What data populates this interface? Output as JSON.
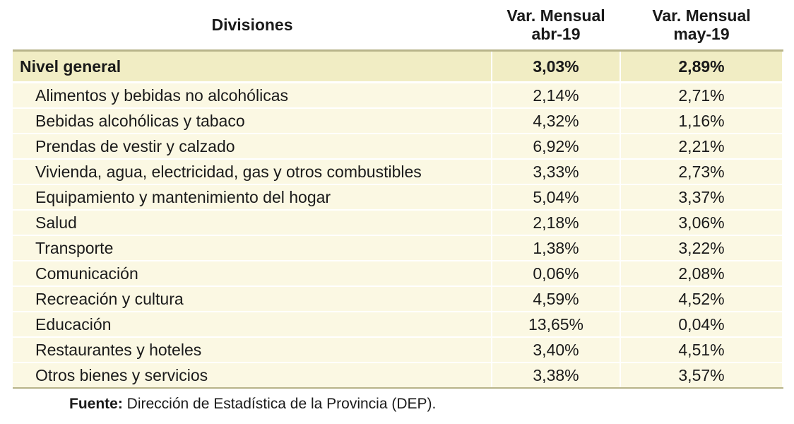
{
  "chart_data": {
    "type": "table",
    "columns": {
      "divisions": "Divisiones",
      "apr": {
        "line1": "Var. Mensual",
        "line2": "abr-19"
      },
      "may": {
        "line1": "Var. Mensual",
        "line2": "may-19"
      }
    },
    "general": {
      "label": "Nivel general",
      "apr": "3,03%",
      "may": "2,89%"
    },
    "rows": [
      {
        "label": "Alimentos y bebidas no alcohólicas",
        "apr": "2,14%",
        "may": "2,71%"
      },
      {
        "label": "Bebidas alcohólicas y tabaco",
        "apr": "4,32%",
        "may": "1,16%"
      },
      {
        "label": "Prendas de vestir y calzado",
        "apr": "6,92%",
        "may": "2,21%"
      },
      {
        "label": "Vivienda, agua, electricidad, gas y otros combustibles",
        "apr": "3,33%",
        "may": "2,73%"
      },
      {
        "label": "Equipamiento y mantenimiento del hogar",
        "apr": "5,04%",
        "may": "3,37%"
      },
      {
        "label": "Salud",
        "apr": "2,18%",
        "may": "3,06%"
      },
      {
        "label": "Transporte",
        "apr": "1,38%",
        "may": "3,22%"
      },
      {
        "label": "Comunicación",
        "apr": "0,06%",
        "may": "2,08%"
      },
      {
        "label": "Recreación y cultura",
        "apr": "4,59%",
        "may": "4,52%"
      },
      {
        "label": "Educación",
        "apr": "13,65%",
        "may": "0,04%"
      },
      {
        "label": "Restaurantes y hoteles",
        "apr": "3,40%",
        "may": "4,51%"
      },
      {
        "label": "Otros bienes y servicios",
        "apr": "3,38%",
        "may": "3,57%"
      }
    ]
  },
  "source": {
    "label": "Fuente:",
    "text": " Dirección de Estadística de la Provincia (DEP)."
  },
  "colors": {
    "general_row_bg": "#f1edc4",
    "row_bg": "#fbf8e3",
    "rule": "#b8b48a"
  }
}
